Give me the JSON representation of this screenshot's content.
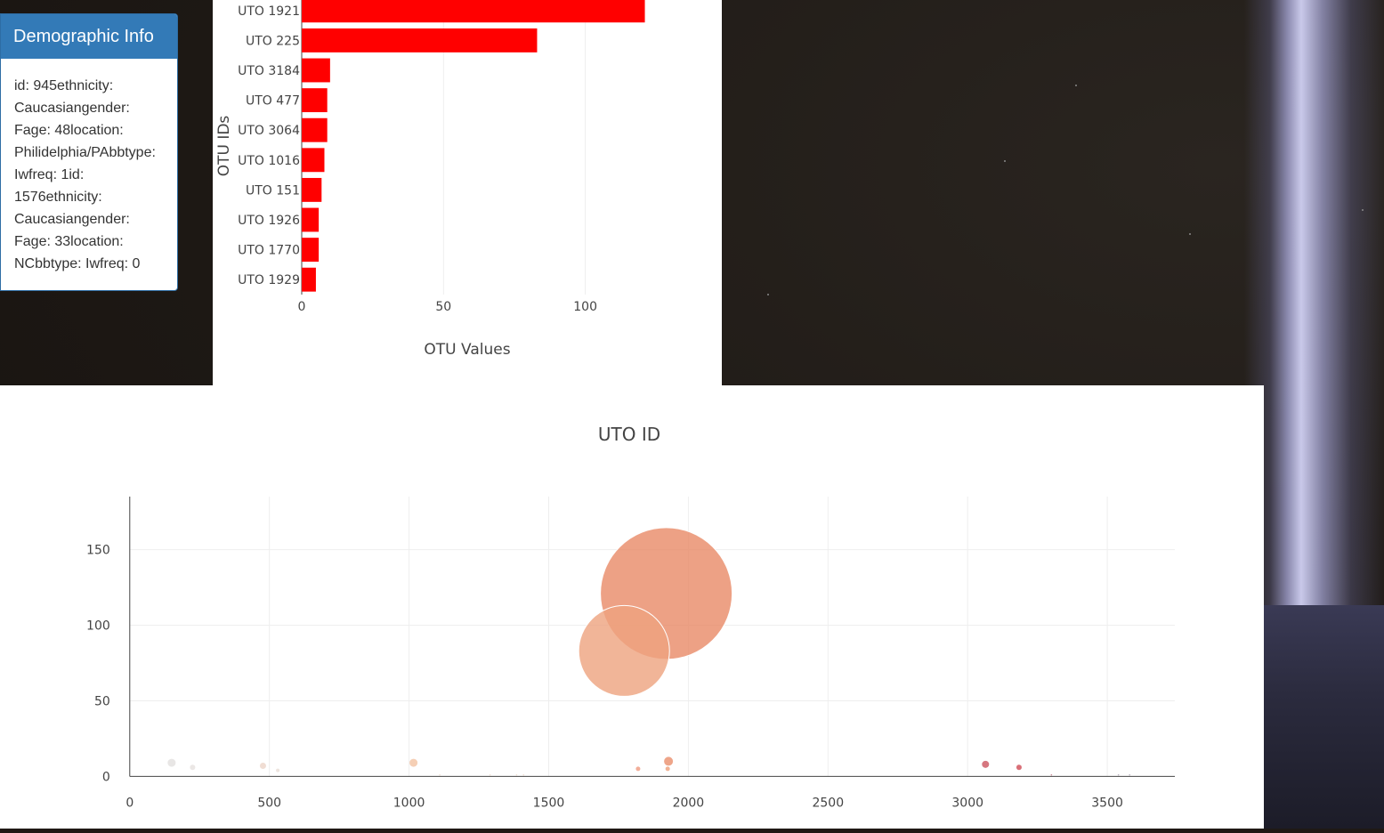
{
  "demographic": {
    "heading": "Demographic Info",
    "text": "id: 945ethnicity: Caucasiangender: Fage: 48location: Philidelphia/PAbbtype: Iwfreq: 1id: 1576ethnicity: Caucasiangender: Fage: 33location: NCbbtype: Iwfreq: 0"
  },
  "colors": {
    "bar": "#ff0000",
    "bubble_main": "#e98a67",
    "panel_heading": "#337ab7"
  },
  "chart_data": [
    {
      "type": "bar",
      "orientation": "horizontal",
      "title": "",
      "xlabel": "OTU Values",
      "ylabel": "OTU IDs",
      "categories": [
        "UTO 1921",
        "UTO 225",
        "UTO 3184",
        "UTO 477",
        "UTO 3064",
        "UTO 1016",
        "UTO 151",
        "UTO 1926",
        "UTO 1770",
        "UTO 1929"
      ],
      "values": [
        121,
        83,
        10,
        9,
        9,
        8,
        7,
        6,
        6,
        5
      ],
      "xticks": [
        0,
        50,
        100
      ],
      "xlim": [
        0,
        145
      ],
      "grid": true
    },
    {
      "type": "scatter",
      "subtype": "bubble",
      "title": "UTO ID",
      "xticks": [
        0,
        500,
        1000,
        1500,
        2000,
        2500,
        3000,
        3500
      ],
      "yticks": [
        0,
        50,
        100,
        150
      ],
      "xlim": [
        -50,
        3790
      ],
      "ylim": [
        -3,
        186
      ],
      "grid": true,
      "points": [
        {
          "x": 150,
          "y": 9,
          "size": 9,
          "color": "#e2e0df"
        },
        {
          "x": 225,
          "y": 6,
          "size": 6,
          "color": "#e6e1de"
        },
        {
          "x": 477,
          "y": 7,
          "size": 7,
          "color": "#ecd5c8"
        },
        {
          "x": 530,
          "y": 4,
          "size": 4,
          "color": "#e9ddd6"
        },
        {
          "x": 1016,
          "y": 9,
          "size": 9,
          "color": "#f3c3a2"
        },
        {
          "x": 1110,
          "y": 1,
          "size": 1,
          "color": "#efd9c8"
        },
        {
          "x": 1290,
          "y": 1,
          "size": 1,
          "color": "#efd9c8"
        },
        {
          "x": 1385,
          "y": 1,
          "size": 1,
          "color": "#efd9c8"
        },
        {
          "x": 1410,
          "y": 1,
          "size": 1,
          "color": "#efd9c8"
        },
        {
          "x": 1770,
          "y": 83,
          "size": 102,
          "color": "#eea27e"
        },
        {
          "x": 1820,
          "y": 5,
          "size": 5,
          "color": "#ef9a7f"
        },
        {
          "x": 1921,
          "y": 121,
          "size": 148,
          "color": "#e98a67"
        },
        {
          "x": 1926,
          "y": 5,
          "size": 5,
          "color": "#ee9f79"
        },
        {
          "x": 1929,
          "y": 10,
          "size": 10,
          "color": "#ea8e6c"
        },
        {
          "x": 3064,
          "y": 8,
          "size": 8,
          "color": "#cc5560"
        },
        {
          "x": 3184,
          "y": 6,
          "size": 6,
          "color": "#cf4b55"
        },
        {
          "x": 3300,
          "y": 1,
          "size": 1,
          "color": "#c07080"
        },
        {
          "x": 3540,
          "y": 1,
          "size": 1,
          "color": "#aaa0b0"
        },
        {
          "x": 3580,
          "y": 1,
          "size": 1,
          "color": "#aaa0b0"
        }
      ]
    }
  ]
}
